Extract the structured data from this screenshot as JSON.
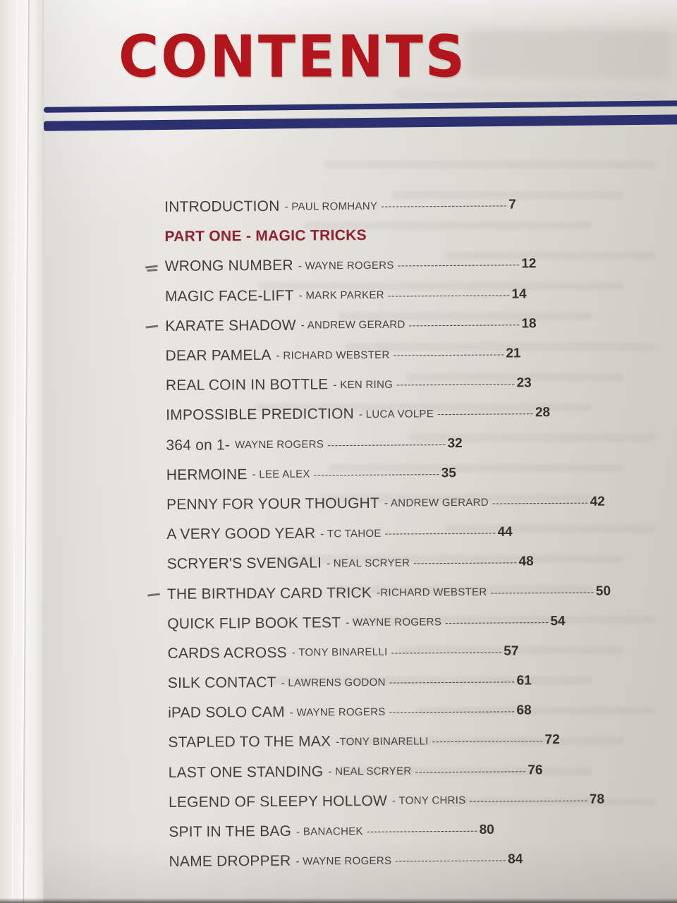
{
  "page_title": {
    "text": "CONTENTS"
  },
  "colors": {
    "title_red": "#b2161c",
    "part_heading_red": "#8f2130",
    "rule_blue": "#2b306e",
    "body_text": "#3f3e3b"
  },
  "toc": {
    "entries": [
      {
        "kind": "entry",
        "title": "INTRODUCTION",
        "byline": "- PAUL ROMHANY",
        "dashes": "----------------------------------",
        "page": "7",
        "mark": ""
      },
      {
        "kind": "heading",
        "text": "PART ONE - MAGIC TRICKS"
      },
      {
        "kind": "entry",
        "title": "WRONG NUMBER",
        "byline": "- WAYNE ROGERS",
        "dashes": "---------------------------------",
        "page": "12",
        "mark": "double"
      },
      {
        "kind": "entry",
        "title": "MAGIC FACE-LIFT",
        "byline": "- MARK PARKER",
        "dashes": "---------------------------------",
        "page": "14",
        "mark": ""
      },
      {
        "kind": "entry",
        "title": "KARATE SHADOW",
        "byline": "- ANDREW GERARD",
        "dashes": "------------------------------",
        "page": "18",
        "mark": "dash"
      },
      {
        "kind": "entry",
        "title": "DEAR PAMELA",
        "byline": "- RICHARD WEBSTER",
        "dashes": "------------------------------",
        "page": "21",
        "mark": ""
      },
      {
        "kind": "entry",
        "title": "REAL COIN IN BOTTLE",
        "byline": "- KEN RING",
        "dashes": "--------------------------------",
        "page": "23",
        "mark": ""
      },
      {
        "kind": "entry",
        "title": "IMPOSSIBLE PREDICTION",
        "byline": "- LUCA VOLPE",
        "dashes": "--------------------------",
        "page": "28",
        "mark": ""
      },
      {
        "kind": "entry",
        "title": "364 on 1-",
        "byline": "WAYNE ROGERS",
        "dashes": "--------------------------------",
        "page": "32",
        "mark": ""
      },
      {
        "kind": "entry",
        "title": "HERMOINE",
        "byline": "- LEE ALEX",
        "dashes": "----------------------------------",
        "page": "35",
        "mark": ""
      },
      {
        "kind": "entry",
        "title": "PENNY FOR YOUR THOUGHT",
        "byline": "- ANDREW GERARD",
        "dashes": "--------------------------",
        "page": "42",
        "mark": ""
      },
      {
        "kind": "entry",
        "title": "A VERY GOOD YEAR",
        "byline": "- TC TAHOE",
        "dashes": "------------------------------",
        "page": "44",
        "mark": ""
      },
      {
        "kind": "entry",
        "title": "SCRYER'S SVENGALI",
        "byline": "- NEAL SCRYER",
        "dashes": "----------------------------",
        "page": "48",
        "mark": ""
      },
      {
        "kind": "entry",
        "title": "THE BIRTHDAY CARD TRICK",
        "byline": "-RICHARD WEBSTER",
        "dashes": "----------------------------",
        "page": "50",
        "mark": "dash"
      },
      {
        "kind": "entry",
        "title": "QUICK FLIP BOOK TEST",
        "byline": "- WAYNE ROGERS",
        "dashes": "----------------------------",
        "page": "54",
        "mark": ""
      },
      {
        "kind": "entry",
        "title": "CARDS ACROSS",
        "byline": "- TONY BINARELLI",
        "dashes": "------------------------------",
        "page": "57",
        "mark": ""
      },
      {
        "kind": "entry",
        "title": "SILK CONTACT",
        "byline": "- LAWRENS GODON",
        "dashes": "----------------------------------",
        "page": "61",
        "mark": ""
      },
      {
        "kind": "entry",
        "title": "iPAD SOLO CAM",
        "byline": "- WAYNE ROGERS",
        "dashes": "----------------------------------",
        "page": "68",
        "mark": ""
      },
      {
        "kind": "entry",
        "title": "STAPLED TO THE MAX",
        "byline": "-TONY BINARELLI",
        "dashes": "------------------------------",
        "page": "72",
        "mark": ""
      },
      {
        "kind": "entry",
        "title": "LAST ONE STANDING",
        "byline": "- NEAL SCRYER",
        "dashes": "------------------------------",
        "page": "76",
        "mark": ""
      },
      {
        "kind": "entry",
        "title": "LEGEND OF SLEEPY HOLLOW",
        "byline": "- TONY CHRIS",
        "dashes": "--------------------------------",
        "page": "78",
        "mark": ""
      },
      {
        "kind": "entry",
        "title": "SPIT IN THE BAG",
        "byline": "- BANACHEK",
        "dashes": "------------------------------",
        "page": "80",
        "mark": ""
      },
      {
        "kind": "entry",
        "title": "NAME DROPPER",
        "byline": "- WAYNE ROGERS",
        "dashes": "------------------------------",
        "page": "84",
        "mark": ""
      }
    ]
  }
}
